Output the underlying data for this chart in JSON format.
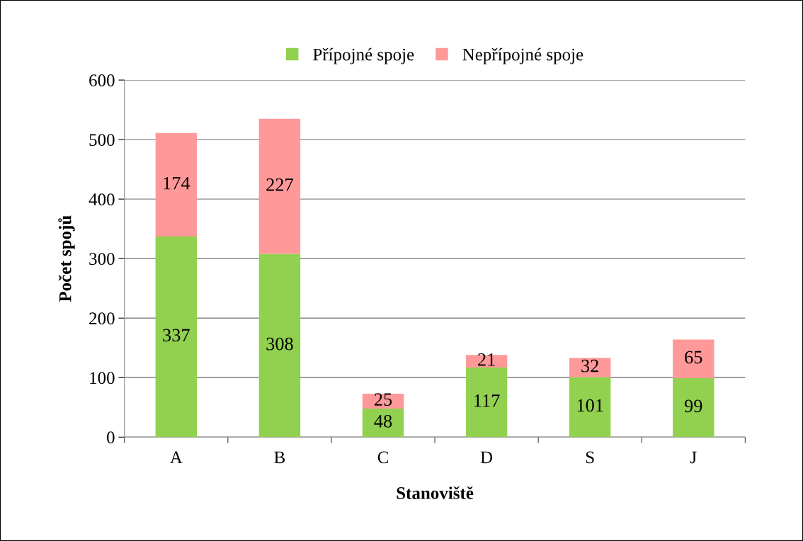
{
  "chart_data": {
    "type": "bar",
    "stacked": true,
    "xlabel": "Stanoviště",
    "ylabel": "Počet spojů",
    "categories": [
      "A",
      "B",
      "C",
      "D",
      "S",
      "J"
    ],
    "series": [
      {
        "name": "Přípojné spoje",
        "color": "#92d050",
        "values": [
          337,
          308,
          48,
          117,
          101,
          99
        ]
      },
      {
        "name": "Nepřípojné spoje",
        "color": "#ff9999",
        "values": [
          174,
          227,
          25,
          21,
          32,
          65
        ]
      }
    ],
    "ylim": [
      0,
      600
    ],
    "yticks": [
      0,
      100,
      200,
      300,
      400,
      500,
      600
    ],
    "grid": "y",
    "legend": "top",
    "data_labels": true
  }
}
